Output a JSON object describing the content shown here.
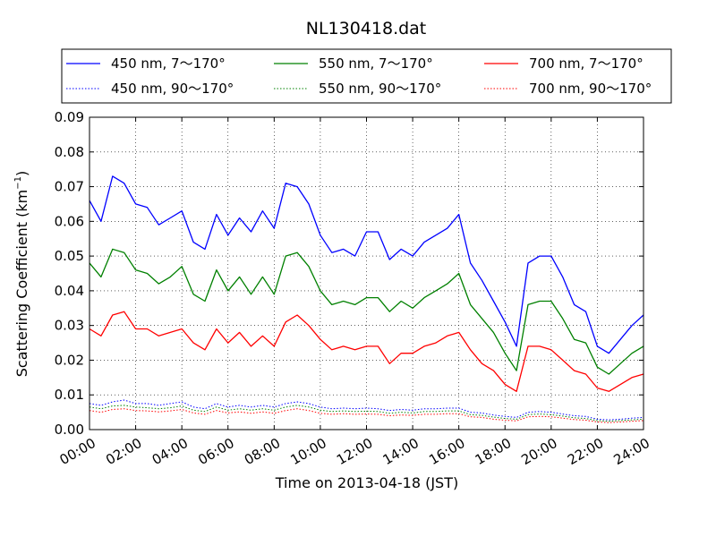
{
  "chart_data": {
    "type": "line",
    "title": "NL130418.dat",
    "xlabel": "Time on 2013-04-18 (JST)",
    "ylabel_main": "Scattering Coefficient (km",
    "ylabel_sup": "−1",
    "ylabel_close": ")",
    "xlim": [
      0,
      24
    ],
    "ylim": [
      0,
      0.09
    ],
    "x_ticks": [
      0,
      2,
      4,
      6,
      8,
      10,
      12,
      14,
      16,
      18,
      20,
      22,
      24
    ],
    "x_tick_labels": [
      "00:00",
      "02:00",
      "04:00",
      "06:00",
      "08:00",
      "10:00",
      "12:00",
      "14:00",
      "16:00",
      "18:00",
      "20:00",
      "22:00",
      "24:00"
    ],
    "y_ticks": [
      0,
      0.01,
      0.02,
      0.03,
      0.04,
      0.05,
      0.06,
      0.07,
      0.08,
      0.09
    ],
    "y_tick_labels": [
      "0.00",
      "0.01",
      "0.02",
      "0.03",
      "0.04",
      "0.05",
      "0.06",
      "0.07",
      "0.08",
      "0.09"
    ],
    "grid": true,
    "legend": "top",
    "x": [
      0,
      0.5,
      1,
      1.5,
      2,
      2.5,
      3,
      3.5,
      4,
      4.5,
      5,
      5.5,
      6,
      6.5,
      7,
      7.5,
      8,
      8.5,
      9,
      9.5,
      10,
      10.5,
      11,
      11.5,
      12,
      12.5,
      13,
      13.5,
      14,
      14.5,
      15,
      15.5,
      16,
      16.5,
      17,
      17.5,
      18,
      18.5,
      19,
      19.5,
      20,
      20.5,
      21,
      21.5,
      22,
      22.5,
      23,
      23.5,
      24
    ],
    "series": [
      {
        "name": "450 nm, 7～170°",
        "color": "#0000ff",
        "style": "solid",
        "values": [
          0.066,
          0.06,
          0.073,
          0.071,
          0.065,
          0.064,
          0.059,
          0.061,
          0.063,
          0.054,
          0.052,
          0.062,
          0.056,
          0.061,
          0.057,
          0.063,
          0.058,
          0.071,
          0.07,
          0.065,
          0.056,
          0.051,
          0.052,
          0.05,
          0.057,
          0.057,
          0.049,
          0.052,
          0.05,
          0.054,
          0.056,
          0.058,
          0.062,
          0.048,
          0.043,
          0.037,
          0.031,
          0.024,
          0.048,
          0.05,
          0.05,
          0.044,
          0.036,
          0.034,
          0.024,
          0.022,
          0.026,
          0.03,
          0.033
        ]
      },
      {
        "name": "550 nm, 7～170°",
        "color": "#008000",
        "style": "solid",
        "values": [
          0.048,
          0.044,
          0.052,
          0.051,
          0.046,
          0.045,
          0.042,
          0.044,
          0.047,
          0.039,
          0.037,
          0.046,
          0.04,
          0.044,
          0.039,
          0.044,
          0.039,
          0.05,
          0.051,
          0.047,
          0.04,
          0.036,
          0.037,
          0.036,
          0.038,
          0.038,
          0.034,
          0.037,
          0.035,
          0.038,
          0.04,
          0.042,
          0.045,
          0.036,
          0.032,
          0.028,
          0.022,
          0.017,
          0.036,
          0.037,
          0.037,
          0.032,
          0.026,
          0.025,
          0.018,
          0.016,
          0.019,
          0.022,
          0.024
        ]
      },
      {
        "name": "700 nm, 7～170°",
        "color": "#ff0000",
        "style": "solid",
        "values": [
          0.029,
          0.027,
          0.033,
          0.034,
          0.029,
          0.029,
          0.027,
          0.028,
          0.029,
          0.025,
          0.023,
          0.029,
          0.025,
          0.028,
          0.024,
          0.027,
          0.024,
          0.031,
          0.033,
          0.03,
          0.026,
          0.023,
          0.024,
          0.023,
          0.024,
          0.024,
          0.019,
          0.022,
          0.022,
          0.024,
          0.025,
          0.027,
          0.028,
          0.023,
          0.019,
          0.017,
          0.013,
          0.011,
          0.024,
          0.024,
          0.023,
          0.02,
          0.017,
          0.016,
          0.012,
          0.011,
          0.013,
          0.015,
          0.016
        ]
      },
      {
        "name": "450 nm, 90～170°",
        "color": "#0000ff",
        "style": "dotted",
        "values": [
          0.0075,
          0.007,
          0.008,
          0.0085,
          0.0075,
          0.0075,
          0.007,
          0.0075,
          0.008,
          0.0065,
          0.006,
          0.0075,
          0.0065,
          0.007,
          0.0065,
          0.007,
          0.0065,
          0.0075,
          0.008,
          0.0075,
          0.0065,
          0.006,
          0.0062,
          0.006,
          0.0062,
          0.006,
          0.0055,
          0.0058,
          0.0056,
          0.006,
          0.006,
          0.0062,
          0.0062,
          0.005,
          0.0048,
          0.0042,
          0.0038,
          0.0035,
          0.005,
          0.0052,
          0.005,
          0.0045,
          0.004,
          0.0038,
          0.003,
          0.0028,
          0.003,
          0.0033,
          0.0035
        ]
      },
      {
        "name": "550 nm, 90～170°",
        "color": "#008000",
        "style": "dotted",
        "values": [
          0.0065,
          0.006,
          0.0068,
          0.007,
          0.0065,
          0.0063,
          0.006,
          0.0063,
          0.0068,
          0.0056,
          0.0052,
          0.0065,
          0.0056,
          0.006,
          0.0056,
          0.006,
          0.0056,
          0.0065,
          0.007,
          0.0065,
          0.0056,
          0.0052,
          0.0054,
          0.0052,
          0.0053,
          0.0052,
          0.0047,
          0.005,
          0.0048,
          0.0052,
          0.0052,
          0.0054,
          0.0054,
          0.0043,
          0.0041,
          0.0036,
          0.0032,
          0.003,
          0.0043,
          0.0045,
          0.0043,
          0.0039,
          0.0034,
          0.0032,
          0.0026,
          0.0024,
          0.0026,
          0.0028,
          0.003
        ]
      },
      {
        "name": "700 nm, 90～170°",
        "color": "#ff0000",
        "style": "dotted",
        "values": [
          0.0055,
          0.005,
          0.0058,
          0.006,
          0.0055,
          0.0054,
          0.0051,
          0.0054,
          0.0058,
          0.0048,
          0.0044,
          0.0055,
          0.0048,
          0.0051,
          0.0047,
          0.0051,
          0.0047,
          0.0055,
          0.006,
          0.0055,
          0.0047,
          0.0044,
          0.0046,
          0.0044,
          0.0045,
          0.0044,
          0.004,
          0.0042,
          0.0041,
          0.0044,
          0.0044,
          0.0046,
          0.0046,
          0.0037,
          0.0035,
          0.003,
          0.0027,
          0.0025,
          0.0037,
          0.0038,
          0.0037,
          0.0033,
          0.0029,
          0.0027,
          0.0022,
          0.002,
          0.0022,
          0.0024,
          0.0026
        ]
      }
    ]
  }
}
